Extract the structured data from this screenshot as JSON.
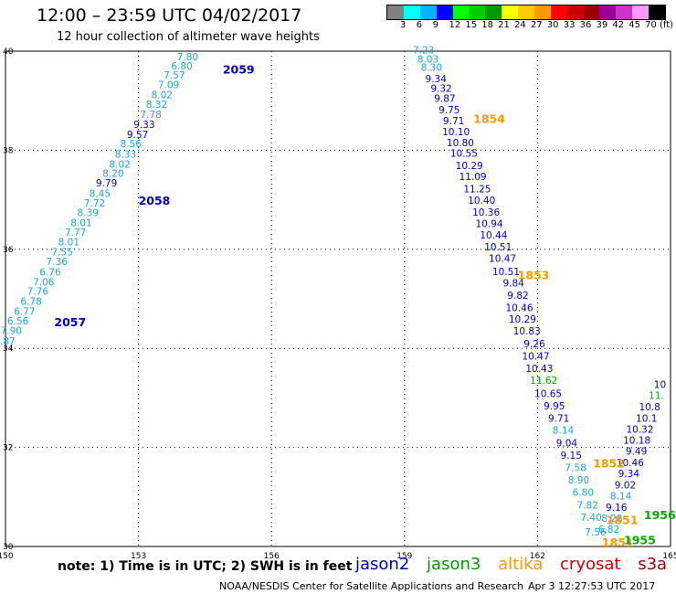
{
  "header": {
    "title": "12:00 – 23:59 UTC 04/02/2017",
    "subtitle": "12 hour collection of altimeter wave heights"
  },
  "legend": {
    "colors": [
      "#808080",
      "#00ffff",
      "#00b4ff",
      "#0000ff",
      "#00ff00",
      "#00cc00",
      "#009900",
      "#ffff00",
      "#ffcc00",
      "#ff9900",
      "#ff0000",
      "#cc0000",
      "#990000",
      "#990099",
      "#cc33cc",
      "#ff99ff",
      "#000000"
    ],
    "labels": [
      "3",
      "6",
      "9",
      "12",
      "15",
      "18",
      "21",
      "24",
      "27",
      "30",
      "33",
      "36",
      "39",
      "42",
      "45",
      "70",
      "(ft)"
    ]
  },
  "footer": {
    "note": "note:  1) Time is in UTC;  2) SWH is in feet",
    "satellites": [
      {
        "name": "jason2",
        "color": "#0000cc"
      },
      {
        "name": "jason3",
        "color": "#009900"
      },
      {
        "name": "altika",
        "color": "#ff9900"
      },
      {
        "name": "cryosat",
        "color": "#cc0000"
      },
      {
        "name": "s3a",
        "color": "#990000"
      }
    ],
    "credit": "NOAA/NESDIS Center for Satellite Applications and Research",
    "timestamp": "Apr  3 12:27:53 UTC 2017"
  },
  "chart_data": {
    "type": "scatter",
    "xlim": [
      150,
      165
    ],
    "ylim": [
      30,
      40
    ],
    "x_ticks": [
      150,
      153,
      156,
      159,
      162,
      165
    ],
    "y_ticks": [
      30,
      32,
      34,
      36,
      38,
      40
    ],
    "grid": true,
    "colors": {
      "jason2": "#0000cc",
      "jason2_light": "#1aa3e8",
      "jason3": "#00aa00",
      "altika": "#ff9900"
    },
    "series": [
      {
        "name": "jason2",
        "label_color": "jason2",
        "time_labels": [
          {
            "text": "2059",
            "x": 154.9,
            "y": 39.55
          },
          {
            "text": "2058",
            "x": 153.0,
            "y": 36.9
          },
          {
            "text": "2057",
            "x": 151.1,
            "y": 34.45
          }
        ],
        "points": [
          {
            "x": 154.35,
            "y": 39.82,
            "v": "7.80",
            "c": "jason2_light"
          },
          {
            "x": 154.22,
            "y": 39.63,
            "v": "6.80",
            "c": "jason2_light"
          },
          {
            "x": 154.05,
            "y": 39.45,
            "v": "7.57",
            "c": "jason2_light"
          },
          {
            "x": 153.92,
            "y": 39.25,
            "v": "7.09",
            "c": "jason2_light"
          },
          {
            "x": 153.77,
            "y": 39.05,
            "v": "8.02",
            "c": "jason2_light"
          },
          {
            "x": 153.65,
            "y": 38.86,
            "v": "8.32",
            "c": "jason2_light"
          },
          {
            "x": 153.52,
            "y": 38.65,
            "v": "7.78",
            "c": "jason2_light"
          },
          {
            "x": 153.37,
            "y": 38.45,
            "v": "9.33",
            "c": "jason2"
          },
          {
            "x": 153.22,
            "y": 38.25,
            "v": "9.57",
            "c": "jason2"
          },
          {
            "x": 153.07,
            "y": 38.06,
            "v": "8.56",
            "c": "jason2_light"
          },
          {
            "x": 152.95,
            "y": 37.85,
            "v": "8.33",
            "c": "jason2_light"
          },
          {
            "x": 152.82,
            "y": 37.65,
            "v": "8.02",
            "c": "jason2_light"
          },
          {
            "x": 152.67,
            "y": 37.46,
            "v": "8.20",
            "c": "jason2_light"
          },
          {
            "x": 152.52,
            "y": 37.27,
            "v": "9.79",
            "c": "jason2"
          },
          {
            "x": 152.37,
            "y": 37.06,
            "v": "8.45",
            "c": "jason2_light"
          },
          {
            "x": 152.25,
            "y": 36.86,
            "v": "7.72",
            "c": "jason2_light"
          },
          {
            "x": 152.1,
            "y": 36.67,
            "v": "8.39",
            "c": "jason2_light"
          },
          {
            "x": 151.95,
            "y": 36.47,
            "v": "8.01",
            "c": "jason2_light"
          },
          {
            "x": 151.82,
            "y": 36.27,
            "v": "7.77",
            "c": "jason2_light"
          },
          {
            "x": 151.67,
            "y": 36.08,
            "v": "8.01",
            "c": "jason2_light"
          },
          {
            "x": 151.52,
            "y": 35.88,
            "v": "7.55",
            "c": "jason2_light"
          },
          {
            "x": 151.4,
            "y": 35.68,
            "v": "7.36",
            "c": "jason2_light"
          },
          {
            "x": 151.25,
            "y": 35.47,
            "v": "6.76",
            "c": "jason2_light"
          },
          {
            "x": 151.1,
            "y": 35.27,
            "v": "7.06",
            "c": "jason2_light"
          },
          {
            "x": 150.97,
            "y": 35.08,
            "v": "7.76",
            "c": "jason2_light"
          },
          {
            "x": 150.82,
            "y": 34.88,
            "v": "6.78",
            "c": "jason2_light"
          },
          {
            "x": 150.67,
            "y": 34.68,
            "v": "6.77",
            "c": "jason2_light"
          },
          {
            "x": 150.52,
            "y": 34.48,
            "v": "6.56",
            "c": "jason2_light"
          },
          {
            "x": 150.37,
            "y": 34.29,
            "v": "7.90",
            "c": "jason2_light"
          },
          {
            "x": 150.22,
            "y": 34.08,
            "v": "6.87",
            "c": "jason2_light"
          },
          {
            "x": 159.67,
            "y": 39.95,
            "v": "7.23",
            "c": "jason2_light"
          },
          {
            "x": 159.77,
            "y": 39.77,
            "v": "8.03",
            "c": "jason2_light"
          },
          {
            "x": 159.85,
            "y": 39.6,
            "v": "8.30",
            "c": "jason2_light"
          },
          {
            "x": 159.95,
            "y": 39.37,
            "v": "9.34",
            "c": "jason2"
          },
          {
            "x": 160.07,
            "y": 39.18,
            "v": "9.32",
            "c": "jason2"
          },
          {
            "x": 160.15,
            "y": 38.98,
            "v": "9.87",
            "c": "jason2"
          },
          {
            "x": 160.25,
            "y": 38.75,
            "v": "9.75",
            "c": "jason2"
          },
          {
            "x": 160.35,
            "y": 38.52,
            "v": "9.71",
            "c": "jason2"
          },
          {
            "x": 160.47,
            "y": 38.3,
            "v": "10.10",
            "c": "jason2"
          },
          {
            "x": 160.57,
            "y": 38.08,
            "v": "10.80",
            "c": "jason2"
          },
          {
            "x": 160.65,
            "y": 37.87,
            "v": "10.55",
            "c": "jason2"
          },
          {
            "x": 160.77,
            "y": 37.62,
            "v": "10.29",
            "c": "jason2"
          },
          {
            "x": 160.85,
            "y": 37.4,
            "v": "11.09",
            "c": "jason2"
          },
          {
            "x": 160.95,
            "y": 37.15,
            "v": "11.25",
            "c": "jason2"
          },
          {
            "x": 161.05,
            "y": 36.92,
            "v": "10.40",
            "c": "jason2"
          },
          {
            "x": 161.15,
            "y": 36.68,
            "v": "10.36",
            "c": "jason2"
          },
          {
            "x": 161.22,
            "y": 36.45,
            "v": "10.94",
            "c": "jason2"
          },
          {
            "x": 161.32,
            "y": 36.22,
            "v": "10.44",
            "c": "jason2"
          },
          {
            "x": 161.42,
            "y": 35.98,
            "v": "10.51",
            "c": "jason2"
          },
          {
            "x": 161.52,
            "y": 35.75,
            "v": "10.47",
            "c": "jason2"
          },
          {
            "x": 161.6,
            "y": 35.48,
            "v": "10.51",
            "c": "jason2"
          },
          {
            "x": 161.7,
            "y": 35.25,
            "v": "9.84",
            "c": "jason2"
          },
          {
            "x": 161.8,
            "y": 35.0,
            "v": "9.82",
            "c": "jason2"
          },
          {
            "x": 161.9,
            "y": 34.75,
            "v": "10.46",
            "c": "jason2"
          },
          {
            "x": 161.97,
            "y": 34.52,
            "v": "10.29",
            "c": "jason2"
          },
          {
            "x": 162.07,
            "y": 34.28,
            "v": "10.83",
            "c": "jason2"
          },
          {
            "x": 162.17,
            "y": 34.02,
            "v": "9.26",
            "c": "jason2"
          },
          {
            "x": 162.27,
            "y": 33.77,
            "v": "10.47",
            "c": "jason2"
          },
          {
            "x": 162.35,
            "y": 33.52,
            "v": "10.43",
            "c": "jason2"
          },
          {
            "x": 162.45,
            "y": 33.28,
            "v": "11.62",
            "c": "jason3"
          },
          {
            "x": 162.55,
            "y": 33.02,
            "v": "10.65",
            "c": "jason2"
          },
          {
            "x": 162.62,
            "y": 32.77,
            "v": "9.95",
            "c": "jason2"
          },
          {
            "x": 162.72,
            "y": 32.52,
            "v": "9.71",
            "c": "jason2"
          },
          {
            "x": 162.82,
            "y": 32.28,
            "v": "8.14",
            "c": "jason2_light"
          },
          {
            "x": 162.9,
            "y": 32.02,
            "v": "9.04",
            "c": "jason2"
          },
          {
            "x": 163.0,
            "y": 31.77,
            "v": "9.15",
            "c": "jason2"
          },
          {
            "x": 163.1,
            "y": 31.52,
            "v": "7.58",
            "c": "jason2_light"
          },
          {
            "x": 163.17,
            "y": 31.27,
            "v": "8.90",
            "c": "jason2_light"
          },
          {
            "x": 163.27,
            "y": 31.02,
            "v": "6.80",
            "c": "jason2_light"
          },
          {
            "x": 163.37,
            "y": 30.77,
            "v": "7.82",
            "c": "jason2_light"
          },
          {
            "x": 163.45,
            "y": 30.52,
            "v": "7.40",
            "c": "jason2_light"
          },
          {
            "x": 163.55,
            "y": 30.22,
            "v": "7.56",
            "c": "jason2_light"
          },
          {
            "x": 164.9,
            "y": 33.2,
            "v": "10",
            "c": "jason2"
          },
          {
            "x": 164.85,
            "y": 32.98,
            "v": "11.",
            "c": "jason3"
          },
          {
            "x": 164.77,
            "y": 32.75,
            "v": "10.8",
            "c": "jason2"
          },
          {
            "x": 164.7,
            "y": 32.52,
            "v": "10.1",
            "c": "jason2"
          },
          {
            "x": 164.62,
            "y": 32.3,
            "v": "10.32",
            "c": "jason2"
          },
          {
            "x": 164.55,
            "y": 32.08,
            "v": "10.18",
            "c": "jason2"
          },
          {
            "x": 164.47,
            "y": 31.85,
            "v": "9.49",
            "c": "jason2"
          },
          {
            "x": 164.4,
            "y": 31.62,
            "v": "10.46",
            "c": "jason2"
          },
          {
            "x": 164.3,
            "y": 31.4,
            "v": "9.34",
            "c": "jason2"
          },
          {
            "x": 164.22,
            "y": 31.17,
            "v": "9.02",
            "c": "jason2"
          },
          {
            "x": 164.12,
            "y": 30.95,
            "v": "8.14",
            "c": "jason2_light"
          },
          {
            "x": 164.02,
            "y": 30.72,
            "v": "9.16",
            "c": "jason2"
          },
          {
            "x": 163.92,
            "y": 30.5,
            "v": "8.28",
            "c": "jason2_light"
          },
          {
            "x": 163.85,
            "y": 30.28,
            "v": "6.82",
            "c": "jason2_light"
          }
        ]
      },
      {
        "name": "altika",
        "label_color": "altika",
        "time_labels": [
          {
            "text": "1854",
            "x": 160.55,
            "y": 38.55
          },
          {
            "text": "1853",
            "x": 161.55,
            "y": 35.4
          },
          {
            "text": "1852",
            "x": 163.25,
            "y": 31.6
          },
          {
            "text": "1851",
            "x": 163.55,
            "y": 30.45
          },
          {
            "text": "1851",
            "x": 163.45,
            "y": 30.0
          }
        ]
      },
      {
        "name": "jason3",
        "label_color": "jason3",
        "time_labels": [
          {
            "text": "1956",
            "x": 164.4,
            "y": 30.55
          },
          {
            "text": "1955",
            "x": 163.95,
            "y": 30.05
          }
        ]
      }
    ]
  }
}
